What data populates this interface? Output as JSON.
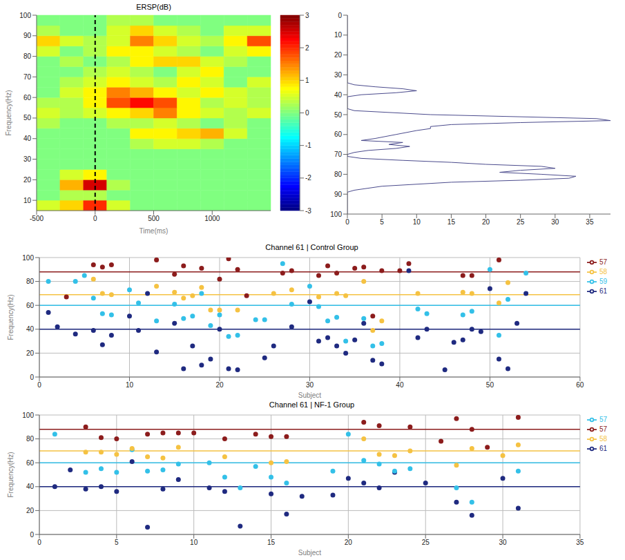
{
  "chart_data": [
    {
      "type": "heatmap",
      "title": "ERSP(dB)",
      "x_label": "Time(ms)",
      "y_label": "Frequency(Hz)",
      "xlim": [
        -500,
        1500
      ],
      "xticks": [
        -500,
        0,
        500,
        1000
      ],
      "ylim": [
        5,
        100
      ],
      "yticks": [
        10,
        20,
        30,
        40,
        50,
        60,
        70,
        80,
        90,
        100
      ],
      "x_bins": [
        -500,
        -300,
        -100,
        100,
        300,
        500,
        700,
        900,
        1100,
        1300,
        1500
      ],
      "y_bins": [
        5,
        10,
        15,
        20,
        25,
        30,
        35,
        40,
        45,
        50,
        55,
        60,
        65,
        70,
        75,
        80,
        85,
        90,
        95,
        100
      ],
      "cells": [
        [
          0.5,
          1,
          2,
          0.5,
          0,
          0,
          0,
          0,
          0,
          0
        ],
        [
          0,
          0.3,
          0.3,
          0,
          0,
          0,
          0,
          0,
          0,
          0
        ],
        [
          0,
          1.2,
          2.5,
          0.3,
          0,
          0,
          0,
          0,
          0,
          0
        ],
        [
          0,
          0.5,
          0.8,
          0,
          0,
          0,
          0,
          0,
          0,
          0
        ],
        [
          0,
          0,
          0,
          0,
          0,
          0,
          0,
          0,
          0,
          0
        ],
        [
          0,
          0,
          0,
          0,
          0,
          0,
          0,
          0,
          0,
          0
        ],
        [
          0,
          0,
          0,
          0,
          0.3,
          0.5,
          0.5,
          0.3,
          0,
          0
        ],
        [
          0,
          0,
          0,
          0,
          0.8,
          0.8,
          1,
          1.2,
          0.5,
          0
        ],
        [
          0.3,
          0,
          0,
          0.3,
          0.3,
          0.5,
          0.3,
          0,
          0.3,
          0
        ],
        [
          0.5,
          0.3,
          0.5,
          0.8,
          1,
          1.5,
          0.8,
          0.5,
          0.3,
          0.5
        ],
        [
          0.3,
          0.3,
          0.8,
          1.8,
          2.2,
          1.8,
          0.8,
          0.3,
          0.5,
          0.3
        ],
        [
          0,
          0.5,
          0.8,
          1.5,
          1.2,
          0.8,
          0.5,
          0.8,
          0.5,
          0.3
        ],
        [
          0,
          0.3,
          0.5,
          0.8,
          0.5,
          0.3,
          0.8,
          0.5,
          0,
          0.5
        ],
        [
          0,
          0,
          0.3,
          0.5,
          0.3,
          0,
          0.5,
          0.8,
          0,
          0
        ],
        [
          0,
          0.3,
          0,
          0.3,
          0.8,
          1,
          1,
          0.5,
          0.3,
          0
        ],
        [
          0.5,
          0,
          0.3,
          0.8,
          0.8,
          0.5,
          0.3,
          0,
          0.5,
          0.8
        ],
        [
          1,
          0.5,
          0.3,
          0.5,
          1.5,
          1,
          0.5,
          0.3,
          0.8,
          1.8
        ],
        [
          0.3,
          0,
          0,
          0.5,
          1,
          0.5,
          0.3,
          0,
          0.5,
          0.5
        ],
        [
          0,
          0,
          0,
          0.3,
          0.3,
          0,
          0,
          0,
          0,
          0
        ]
      ],
      "colorbar_range": [
        -3,
        3
      ],
      "colorbar_ticks": [
        -3,
        -2,
        -1,
        0,
        1,
        2,
        3
      ],
      "vline": 0
    },
    {
      "type": "line",
      "orientation": "horizontal",
      "color": "#4a4a8c",
      "xlim": [
        0,
        38
      ],
      "xticks": [
        0,
        5,
        10,
        15,
        20,
        25,
        30,
        35
      ],
      "ylim": [
        0,
        100
      ],
      "yticks": [
        0,
        10,
        20,
        30,
        40,
        50,
        60,
        70,
        80,
        90,
        100
      ],
      "y": [
        0,
        34,
        35,
        36,
        37,
        38,
        39,
        40,
        41,
        47,
        48,
        50,
        52,
        53,
        54,
        55,
        56,
        57,
        58,
        60,
        62,
        63,
        64,
        65,
        66,
        67,
        68,
        69,
        70,
        71,
        72,
        73,
        74,
        75,
        76,
        77,
        78,
        79,
        80,
        81,
        82,
        83,
        84,
        86,
        88,
        89,
        100
      ],
      "values": [
        0,
        0,
        1,
        4,
        8,
        10,
        7,
        2,
        0,
        0,
        1,
        12,
        36,
        38,
        25,
        15,
        12,
        12,
        10,
        7,
        4,
        2,
        8,
        6,
        9,
        7,
        3,
        1,
        0,
        0,
        2,
        8,
        15,
        20,
        28,
        30,
        25,
        22,
        28,
        33,
        32,
        25,
        15,
        5,
        1,
        0,
        0
      ]
    },
    {
      "type": "scatter",
      "title": "Channel 61 | Control Group",
      "x_label": "Subject",
      "y_label": "Frequency(Hz)",
      "xlim": [
        0,
        60
      ],
      "xticks": [
        0,
        10,
        20,
        30,
        40,
        50,
        60
      ],
      "ylim": [
        0,
        100
      ],
      "yticks": [
        0,
        20,
        40,
        60,
        80,
        100
      ],
      "grid": true,
      "legend": "right",
      "series": [
        {
          "name": "61",
          "color": "#1f2a80",
          "mean_line": 40,
          "x": [
            1,
            2,
            4,
            6,
            7,
            8,
            10,
            11,
            12,
            13,
            15,
            16,
            17,
            18,
            19,
            20,
            21,
            22,
            25,
            26,
            28,
            30,
            31,
            32,
            33,
            34,
            35,
            36,
            37,
            38,
            41,
            42,
            43,
            45,
            46,
            47,
            48,
            49,
            50,
            51,
            52,
            53,
            54
          ],
          "values": [
            54,
            42,
            36,
            39,
            27,
            35,
            51,
            39,
            70,
            21,
            45,
            7,
            26,
            10,
            15,
            40,
            7,
            6,
            16,
            26,
            42,
            63,
            30,
            33,
            26,
            20,
            31,
            45,
            14,
            11,
            89,
            33,
            40,
            6,
            29,
            31,
            40,
            38,
            74,
            15,
            7,
            45,
            70
          ]
        },
        {
          "name": "59",
          "color": "#33c0e8",
          "mean_line": 60,
          "x": [
            1,
            4,
            5,
            6,
            7,
            8,
            10,
            11,
            13,
            15,
            16,
            17,
            18,
            19,
            20,
            21,
            22,
            24,
            25,
            27,
            28,
            30,
            31,
            32,
            33,
            34,
            36,
            37,
            38,
            42,
            43,
            47,
            48,
            50,
            51,
            52,
            54
          ],
          "values": [
            80,
            80,
            85,
            66,
            53,
            52,
            73,
            62,
            47,
            61,
            49,
            51,
            70,
            43,
            52,
            34,
            35,
            48,
            48,
            95,
            61,
            76,
            59,
            47,
            50,
            30,
            49,
            26,
            28,
            57,
            53,
            52,
            55,
            90,
            35,
            65,
            87
          ]
        },
        {
          "name": "58",
          "color": "#f5c242",
          "mean_line": 69,
          "x": [
            6,
            7,
            8,
            13,
            15,
            16,
            17,
            18,
            19,
            20,
            22,
            26,
            28,
            31,
            33,
            34,
            36,
            37,
            38,
            42,
            47,
            48,
            51,
            52
          ],
          "values": [
            82,
            70,
            69,
            76,
            71,
            66,
            68,
            75,
            56,
            56,
            56,
            70,
            73,
            67,
            70,
            68,
            80,
            39,
            47,
            70,
            71,
            70,
            62,
            79
          ]
        },
        {
          "name": "57",
          "color": "#8c1c1c",
          "mean_line": 88,
          "x": [
            3,
            6,
            7,
            8,
            13,
            15,
            16,
            18,
            20,
            21,
            22,
            23,
            27,
            28,
            31,
            32,
            33,
            35,
            36,
            37,
            38,
            40,
            41,
            47,
            48,
            51
          ],
          "values": [
            67,
            94,
            92,
            94,
            98,
            86,
            93,
            91,
            82,
            99,
            90,
            68,
            87,
            89,
            85,
            93,
            87,
            91,
            92,
            51,
            89,
            89,
            95,
            85,
            85,
            98
          ]
        }
      ]
    },
    {
      "type": "scatter",
      "title": "Channel 61 | NF-1 Group",
      "x_label": "Subject",
      "y_label": "Frequency(Hz)",
      "xlim": [
        0,
        35
      ],
      "xticks": [
        0,
        5,
        10,
        15,
        20,
        25,
        30,
        35
      ],
      "ylim": [
        0,
        100
      ],
      "yticks": [
        0,
        20,
        40,
        60,
        80,
        100
      ],
      "grid": true,
      "legend": "right",
      "series": [
        {
          "name": "61",
          "color": "#1f2a80",
          "mean_line": 40,
          "x": [
            1,
            2,
            3,
            4,
            5,
            6,
            7,
            8,
            9,
            11,
            12,
            13,
            15,
            16,
            17,
            19,
            20,
            21,
            22,
            23,
            25,
            27,
            28,
            30,
            31
          ],
          "values": [
            40,
            54,
            38,
            40,
            36,
            61,
            6,
            38,
            46,
            39,
            36,
            7,
            34,
            17,
            32,
            33,
            47,
            43,
            39,
            52,
            43,
            27,
            16,
            47,
            22
          ]
        },
        {
          "name": "57",
          "color": "#33c0e8",
          "mean_line": 60,
          "x": [
            1,
            3,
            4,
            5,
            6,
            7,
            8,
            9,
            11,
            12,
            13,
            14,
            15,
            16,
            19,
            20,
            21,
            22,
            23,
            24,
            27,
            28,
            31
          ],
          "values": [
            84,
            52,
            55,
            52,
            71,
            53,
            54,
            59,
            60,
            48,
            39,
            57,
            48,
            43,
            53,
            84,
            62,
            59,
            53,
            55,
            39,
            27,
            53
          ]
        },
        {
          "name": "58",
          "color": "#f5c242",
          "mean_line": 70,
          "x": [
            3,
            4,
            5,
            6,
            7,
            8,
            9,
            12,
            15,
            16,
            21,
            22,
            23,
            24,
            27,
            28,
            30,
            31
          ],
          "values": [
            69,
            69,
            67,
            72,
            65,
            64,
            73,
            65,
            60,
            61,
            80,
            67,
            66,
            70,
            58,
            72,
            66,
            75
          ]
        },
        {
          "name": "57",
          "color": "#8c1c1c",
          "mean_line": 88,
          "x": [
            3,
            4,
            5,
            7,
            8,
            9,
            10,
            12,
            14,
            15,
            16,
            21,
            22,
            24,
            26,
            27,
            28,
            29,
            31
          ],
          "values": [
            90,
            81,
            80,
            84,
            85,
            85,
            85,
            80,
            84,
            82,
            82,
            94,
            91,
            90,
            78,
            97,
            88,
            73,
            98
          ]
        }
      ]
    }
  ]
}
